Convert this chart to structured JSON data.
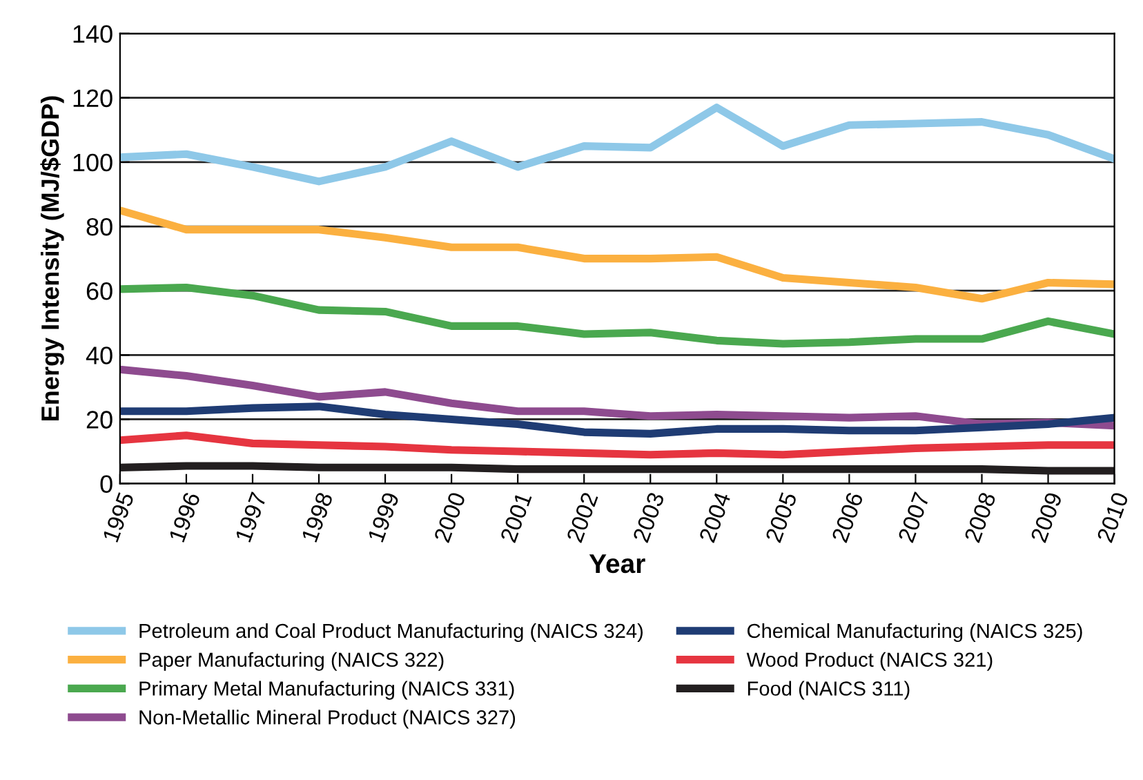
{
  "chart_data": {
    "type": "line",
    "xlabel": "Year",
    "ylabel": "Energy Intensity (MJ/$GDP)",
    "categories": [
      "1995",
      "1996",
      "1997",
      "1998",
      "1999",
      "2000",
      "2001",
      "2002",
      "2003",
      "2004",
      "2005",
      "2006",
      "2007",
      "2008",
      "2009",
      "2010"
    ],
    "series": [
      {
        "name": "Petroleum and Coal Product Manufacturing (NAICS 324)",
        "color": "#8ec8e8",
        "values": [
          101.5,
          102.5,
          98.5,
          94,
          98.5,
          106.5,
          98.5,
          105,
          104.5,
          117,
          105,
          111.5,
          112,
          112.5,
          108.5,
          101
        ]
      },
      {
        "name": "Paper Manufacturing (NAICS 322)",
        "color": "#fbb040",
        "values": [
          85,
          79,
          79,
          79,
          76.5,
          73.5,
          73.5,
          70,
          70,
          70.5,
          64,
          62.5,
          61,
          57.5,
          62.5,
          62
        ]
      },
      {
        "name": "Primary Metal Manufacturing (NAICS 331)",
        "color": "#4aa84f",
        "values": [
          60.5,
          61,
          58.5,
          54,
          53.5,
          49,
          49,
          46.5,
          47,
          44.5,
          43.5,
          44,
          45,
          45,
          50.5,
          46.5
        ]
      },
      {
        "name": "Non-Metallic Mineral Product (NAICS 327)",
        "color": "#8e4b8f",
        "values": [
          35.5,
          33.5,
          30.5,
          27,
          28.5,
          25,
          22.5,
          22.5,
          21,
          21.5,
          21,
          20.5,
          21,
          18.5,
          19,
          18
        ]
      },
      {
        "name": "Chemical Manufacturing (NAICS 325)",
        "color": "#1f3c74",
        "values": [
          22.5,
          22.5,
          23.5,
          24,
          21.5,
          20,
          18.5,
          16,
          15.5,
          17,
          17,
          16.5,
          16.5,
          17.5,
          18.5,
          20.5
        ]
      },
      {
        "name": "Wood Product (NAICS 321)",
        "color": "#e63540",
        "values": [
          13.5,
          15,
          12.5,
          12,
          11.5,
          10.5,
          10,
          9.5,
          9,
          9.5,
          9,
          10,
          11,
          11.5,
          12,
          12
        ]
      },
      {
        "name": "Food (NAICS 311)",
        "color": "#231f20",
        "values": [
          5,
          5.5,
          5.5,
          5,
          5,
          5,
          4.5,
          4.5,
          4.5,
          4.5,
          4.5,
          4.5,
          4.5,
          4.5,
          4,
          4
        ]
      }
    ],
    "ylim": [
      0,
      140
    ],
    "yticks": [
      0,
      20,
      40,
      60,
      80,
      100,
      120,
      140
    ],
    "grid": "y",
    "legend": "bottom",
    "marker": "none",
    "line_style": "solid"
  }
}
